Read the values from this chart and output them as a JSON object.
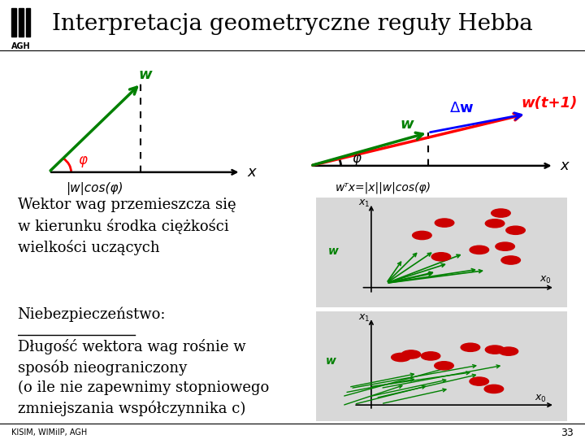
{
  "title": "Interpretacja geometryczne reguły Hebba",
  "title_fontsize": 20,
  "bg_color": "#ffffff",
  "text_color": "#000000",
  "green_color": "#008000",
  "red_color": "#cc0000",
  "blue_color": "#0000cc",
  "body_text": [
    "Wektor wag przemieszcza się",
    "w kierunku środka ciężkości",
    "wielkości uczących"
  ],
  "danger_title": "Niebezpieczeństwo:",
  "danger_text": [
    "Długość wektora wag rośnie w",
    "sposób nieograniczony",
    "(o ile nie zapewnimy stopniowego",
    "zmniejszania współczynnika c)"
  ],
  "footer": "KISIM, WIMiIP, AGH",
  "page_num": "33",
  "label_phi": "φ",
  "label_w": "w",
  "label_x": "x",
  "label_dw": "Δw",
  "label_wt1": "w(t+1)",
  "label_wcosphi": "|w|cos(φ)",
  "label_wtx": "wᵀx=|x||w|cos(φ)"
}
